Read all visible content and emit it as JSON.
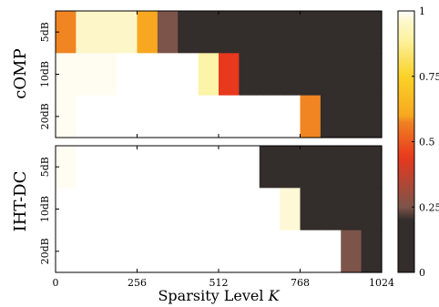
{
  "chart_data": {
    "type": "heatmap",
    "xlabel": "Sparsity Level",
    "xlabel_var": "K",
    "x_ticks": [
      0,
      256,
      512,
      768,
      1024
    ],
    "xlim": [
      0,
      1024
    ],
    "column_width": 64,
    "colormap": "hot",
    "colorbar": {
      "ticks": [
        0,
        0.25,
        0.5,
        0.75,
        1
      ],
      "tick_labels": [
        "0",
        "0.25",
        "0.5",
        "0.75",
        "1"
      ],
      "range": [
        0,
        1
      ]
    },
    "panels": [
      {
        "name": "cOMP",
        "rows": [
          {
            "label": "5dB",
            "values": [
              0.58,
              0.96,
              0.96,
              0.96,
              0.6,
              0.25,
              0,
              0,
              0,
              0,
              0,
              0,
              0,
              0,
              0,
              0
            ]
          },
          {
            "label": "10dB",
            "values": [
              0.99,
              0.99,
              0.99,
              1,
              1,
              1,
              1,
              0.9,
              0.44,
              0,
              0,
              0,
              0,
              0,
              0,
              0
            ]
          },
          {
            "label": "20dB",
            "values": [
              0.99,
              1,
              1,
              1,
              1,
              1,
              1,
              1,
              1,
              1,
              1,
              1,
              0.58,
              0,
              0,
              0
            ]
          }
        ]
      },
      {
        "name": "IHT-DC",
        "rows": [
          {
            "label": "5dB",
            "values": [
              0.99,
              1,
              1,
              1,
              1,
              1,
              1,
              1,
              1,
              1,
              0,
              0,
              0,
              0,
              0,
              0
            ]
          },
          {
            "label": "10dB",
            "values": [
              1,
              1,
              1,
              1,
              1,
              1,
              1,
              1,
              1,
              1,
              1,
              0.97,
              0,
              0,
              0,
              0
            ]
          },
          {
            "label": "20dB",
            "values": [
              1,
              1,
              1,
              1,
              1,
              1,
              1,
              1,
              1,
              1,
              1,
              1,
              1,
              1,
              0.25,
              0
            ]
          }
        ]
      }
    ]
  }
}
